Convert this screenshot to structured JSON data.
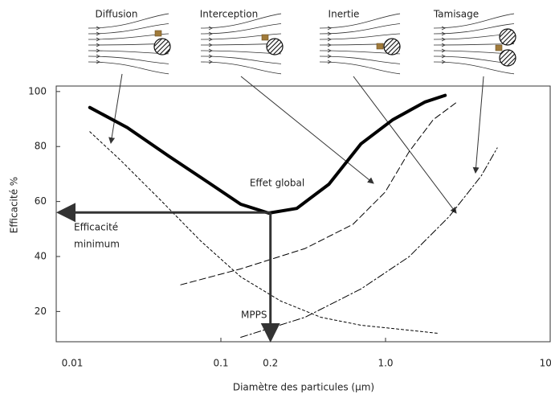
{
  "chart_data": {
    "type": "line",
    "x_label": "Diamètre des particules (µm)",
    "y_label": "Efficacité %",
    "log_x": true,
    "xlim": [
      0.01,
      10
    ],
    "xticks": [
      0.01,
      0.1,
      0.2,
      {
        "value": 1,
        "label": "1.0"
      },
      {
        "value": 10,
        "label": "10.0"
      }
    ],
    "ylim": [
      9,
      102
    ],
    "yticks": [
      20,
      40,
      60,
      80,
      100
    ],
    "series": [
      {
        "name": "Effet global",
        "color": "#000000",
        "dash": "solid",
        "width": 4,
        "x": [
          0.016,
          0.027,
          0.048,
          0.084,
          0.132,
          0.195,
          0.289,
          0.453,
          0.71,
          1.11,
          1.74,
          2.3
        ],
        "values": [
          94.2,
          86.9,
          76.6,
          66.9,
          59,
          55.8,
          57.5,
          66.3,
          81,
          89.8,
          96.2,
          98.6
        ]
      },
      {
        "name": "Diffusion",
        "color": "#000000",
        "dash": "short",
        "width": 1,
        "x": [
          0.016,
          0.0245,
          0.043,
          0.075,
          0.132,
          0.231,
          0.405,
          0.71,
          1.24,
          2.06
        ],
        "values": [
          85.4,
          75.1,
          60.5,
          45.8,
          32.6,
          23.8,
          17.9,
          15,
          13.5,
          12.1
        ]
      },
      {
        "name": "Interception",
        "color": "#000000",
        "dash": "long",
        "width": 1,
        "x": [
          0.057,
          0.132,
          0.324,
          0.634,
          0.993,
          1.39,
          1.95,
          2.72
        ],
        "values": [
          29.7,
          35.5,
          42.9,
          51.7,
          63.4,
          78.1,
          89.8,
          96.2
        ]
      },
      {
        "name": "Inertie",
        "color": "#000000",
        "dash": "dashdot",
        "width": 1,
        "x": [
          0.132,
          0.324,
          0.71,
          1.39,
          2.44,
          3.81,
          4.77
        ],
        "values": [
          10.6,
          17.9,
          28.2,
          39.9,
          54.6,
          69.3,
          79.5
        ]
      }
    ],
    "sieving_label": "Tamisage",
    "minimum": {
      "x": 0.2,
      "y": 56,
      "label_lines": [
        "Efficacité",
        "minimum"
      ],
      "mpps_label": "MPPS"
    }
  }
}
